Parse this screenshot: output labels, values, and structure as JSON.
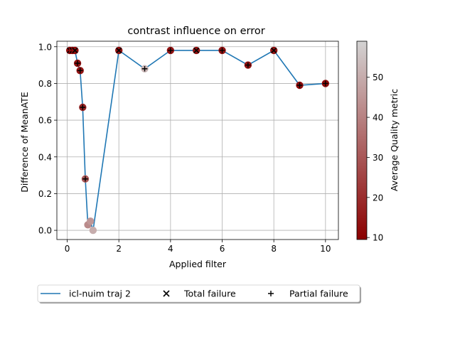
{
  "chart_data": {
    "type": "scatter",
    "title": "contrast influence on error",
    "xlabel": "Applied filter",
    "ylabel": "Difference of MeanATE",
    "xlim": [
      -0.4,
      10.5
    ],
    "ylim": [
      -0.05,
      1.03
    ],
    "xticks": [
      0,
      2,
      4,
      6,
      8,
      10
    ],
    "yticks": [
      0.0,
      0.2,
      0.4,
      0.6,
      0.8,
      1.0
    ],
    "grid": true,
    "series": [
      {
        "name": "icl-nuim traj 2",
        "kind": "line",
        "color": "#1f77b4",
        "x": [
          0.1,
          0.2,
          0.3,
          0.4,
          0.5,
          0.6,
          0.7,
          0.8,
          0.9,
          1.0,
          2,
          3,
          4,
          5,
          6,
          7,
          8,
          9,
          10
        ],
        "y": [
          0.98,
          0.98,
          0.98,
          0.91,
          0.87,
          0.67,
          0.28,
          0.03,
          0.05,
          0.0,
          0.98,
          0.88,
          0.98,
          0.98,
          0.98,
          0.9,
          0.98,
          0.79,
          0.8
        ],
        "quality": [
          12,
          12,
          12,
          14,
          14,
          18,
          30,
          42,
          45,
          50,
          13,
          52,
          14,
          14,
          14,
          14,
          14,
          12,
          12
        ],
        "markers": [
          "x",
          "x",
          "x",
          "+",
          "+",
          "+",
          "+",
          "",
          "",
          "",
          "x",
          "+",
          "+",
          "x",
          "+",
          "+",
          "x",
          "+",
          "+"
        ]
      }
    ],
    "colorbar": {
      "label": "Average Quality metric",
      "range": [
        9.5,
        59
      ],
      "ticks": [
        10,
        20,
        30,
        40,
        50
      ],
      "colors": [
        "#8b0000",
        "#d3d3d3"
      ]
    },
    "legend": {
      "placement": "bottom",
      "entries": [
        {
          "label": "icl-nuim traj 2",
          "symbol": "line"
        },
        {
          "label": "Total failure",
          "symbol": "x"
        },
        {
          "label": "Partial failure",
          "symbol": "+"
        }
      ]
    }
  }
}
